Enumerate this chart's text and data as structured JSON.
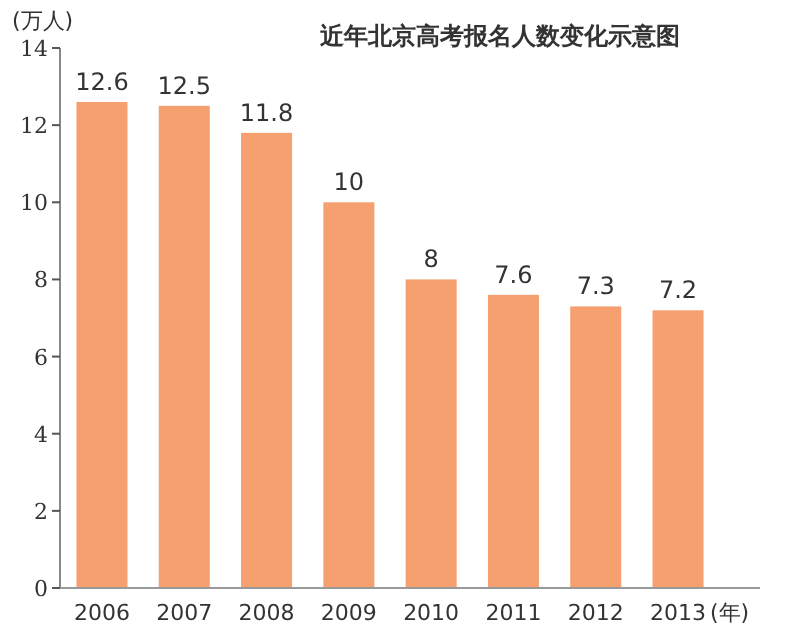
{
  "chart_data": {
    "type": "bar",
    "title": "近年北京高考报名人数变化示意图",
    "ylabel": "(万人)",
    "xlabel": "(年)",
    "categories": [
      "2006",
      "2007",
      "2008",
      "2009",
      "2010",
      "2011",
      "2012",
      "2013"
    ],
    "values": [
      12.6,
      12.5,
      11.8,
      10,
      8,
      7.6,
      7.3,
      7.2
    ],
    "color": "#f5a06e",
    "ylim": [
      0,
      14
    ],
    "yticks": [
      0,
      2,
      4,
      6,
      8,
      10,
      12,
      14
    ],
    "data_labels": true
  }
}
